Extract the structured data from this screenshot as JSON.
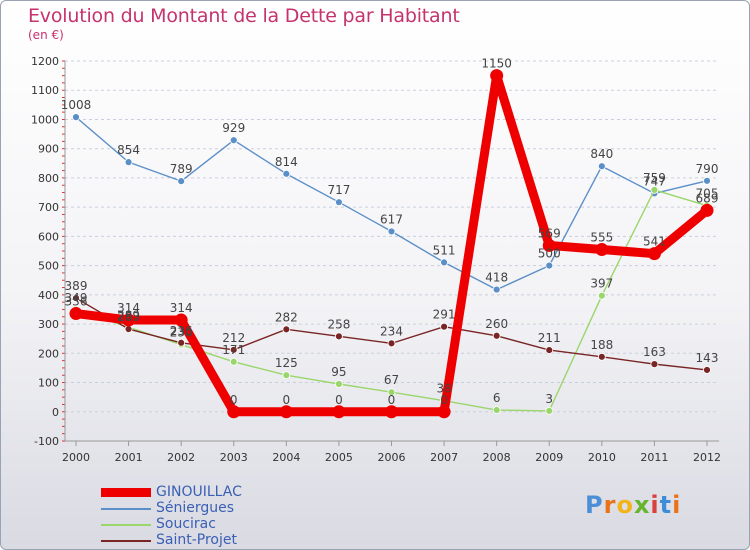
{
  "title": "Evolution du Montant de la Dette par Habitant",
  "subtitle": "(en €)",
  "logo": {
    "text": "Proxiti",
    "colors": [
      "#4a8fd8",
      "#e8731a",
      "#f2b41c",
      "#67b52e",
      "#d9413f",
      "#3a8dd6",
      "#e8731a"
    ]
  },
  "chart_data": {
    "type": "line",
    "x": [
      "2000",
      "2001",
      "2002",
      "2003",
      "2004",
      "2005",
      "2006",
      "2007",
      "2008",
      "2009",
      "2010",
      "2011",
      "2012"
    ],
    "ylim": [
      -100,
      1200
    ],
    "yticks": [
      "-100",
      "0",
      "100",
      "200",
      "300",
      "400",
      "500",
      "600",
      "700",
      "800",
      "900",
      "1000",
      "1100",
      "1200"
    ],
    "grid": "horizontal dashed",
    "legend_position": "bottom-left",
    "series": [
      {
        "name": "Séniergues",
        "color": "#5b8fc7",
        "values": [
          1008,
          854,
          789,
          929,
          814,
          717,
          617,
          511,
          418,
          500,
          840,
          747,
          790
        ],
        "labels": [
          "1008",
          "854",
          "789",
          "929",
          "814",
          "717",
          "617",
          "511",
          "418",
          "500",
          "840",
          "747",
          "790"
        ]
      },
      {
        "name": "Soucirac",
        "color": "#9ad66b",
        "values": [
          349,
          289,
          230,
          171,
          125,
          95,
          67,
          38,
          6,
          3,
          397,
          759,
          705
        ],
        "labels": [
          "349",
          "289",
          "230",
          "171",
          "125",
          "95",
          "67",
          "38",
          "6",
          "3",
          "397",
          "759",
          "705"
        ]
      },
      {
        "name": "Saint-Projet",
        "color": "#7a2525",
        "values": [
          389,
          283,
          236,
          212,
          282,
          258,
          234,
          291,
          260,
          211,
          188,
          163,
          143
        ],
        "labels": [
          "389",
          "283",
          "236",
          "212",
          "282",
          "258",
          "234",
          "291",
          "260",
          "211",
          "188",
          "163",
          "143"
        ]
      },
      {
        "name": "GINOUILLAC",
        "color": "#ee0000",
        "values": [
          336,
          314,
          314,
          0,
          0,
          0,
          0,
          0,
          1150,
          569,
          555,
          541,
          689
        ],
        "labels": [
          "336",
          "314",
          "314",
          "0",
          "0",
          "0",
          "0",
          "0",
          "1150",
          "569",
          "555",
          "541",
          "689"
        ]
      }
    ]
  }
}
